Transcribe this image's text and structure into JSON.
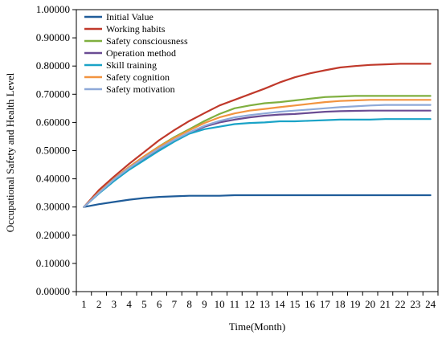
{
  "chart_data": {
    "type": "line",
    "title": "",
    "xlabel": "Time(Month)",
    "ylabel": "Occupational Safety and  Health Level",
    "x": [
      1,
      2,
      3,
      4,
      5,
      6,
      7,
      8,
      9,
      10,
      11,
      12,
      13,
      14,
      15,
      16,
      17,
      18,
      19,
      20,
      21,
      22,
      23,
      24
    ],
    "ylim": [
      0,
      1
    ],
    "yticks": [
      "0.00000",
      "0.10000",
      "0.20000",
      "0.30000",
      "0.40000",
      "0.50000",
      "0.60000",
      "0.70000",
      "0.80000",
      "0.90000",
      "1.00000"
    ],
    "grid": false,
    "legend_position": "top-left",
    "series": [
      {
        "name": "Initial Value",
        "color": "#1F5C99",
        "values": [
          0.3,
          0.31,
          0.318,
          0.326,
          0.332,
          0.336,
          0.338,
          0.34,
          0.34,
          0.34,
          0.342,
          0.342,
          0.342,
          0.342,
          0.342,
          0.342,
          0.342,
          0.342,
          0.342,
          0.342,
          0.342,
          0.342,
          0.342,
          0.342
        ]
      },
      {
        "name": "Working habits",
        "color": "#C0392B",
        "values": [
          0.3,
          0.36,
          0.408,
          0.453,
          0.495,
          0.537,
          0.573,
          0.605,
          0.633,
          0.66,
          0.68,
          0.7,
          0.72,
          0.742,
          0.76,
          0.774,
          0.785,
          0.795,
          0.8,
          0.804,
          0.806,
          0.808,
          0.808,
          0.808
        ]
      },
      {
        "name": "Safety consciousness",
        "color": "#7FAF3F",
        "values": [
          0.3,
          0.352,
          0.4,
          0.442,
          0.48,
          0.515,
          0.548,
          0.576,
          0.605,
          0.63,
          0.65,
          0.66,
          0.668,
          0.672,
          0.678,
          0.684,
          0.69,
          0.692,
          0.694,
          0.694,
          0.694,
          0.694,
          0.694,
          0.694
        ]
      },
      {
        "name": "Operation method",
        "color": "#6A4C93",
        "values": [
          0.3,
          0.35,
          0.396,
          0.436,
          0.472,
          0.505,
          0.535,
          0.562,
          0.585,
          0.6,
          0.61,
          0.618,
          0.624,
          0.628,
          0.63,
          0.634,
          0.638,
          0.64,
          0.641,
          0.642,
          0.642,
          0.642,
          0.642,
          0.642
        ]
      },
      {
        "name": "Skill training",
        "color": "#1AA3C7",
        "values": [
          0.3,
          0.348,
          0.392,
          0.432,
          0.466,
          0.5,
          0.532,
          0.56,
          0.576,
          0.585,
          0.594,
          0.598,
          0.6,
          0.604,
          0.604,
          0.606,
          0.608,
          0.61,
          0.61,
          0.61,
          0.612,
          0.612,
          0.612,
          0.612
        ]
      },
      {
        "name": "Safety cognition",
        "color": "#F29440",
        "values": [
          0.3,
          0.352,
          0.4,
          0.442,
          0.48,
          0.514,
          0.545,
          0.572,
          0.598,
          0.618,
          0.632,
          0.642,
          0.648,
          0.654,
          0.66,
          0.666,
          0.672,
          0.676,
          0.678,
          0.68,
          0.68,
          0.68,
          0.68,
          0.68
        ]
      },
      {
        "name": "Safety motivation",
        "color": "#8EA9D8",
        "values": [
          0.3,
          0.35,
          0.398,
          0.438,
          0.474,
          0.508,
          0.538,
          0.565,
          0.588,
          0.605,
          0.618,
          0.626,
          0.632,
          0.638,
          0.642,
          0.646,
          0.65,
          0.654,
          0.657,
          0.66,
          0.662,
          0.662,
          0.662,
          0.662
        ]
      }
    ]
  }
}
